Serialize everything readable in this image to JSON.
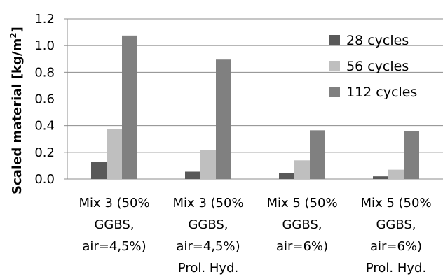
{
  "chart_data": {
    "type": "bar",
    "ylabel": "Scaled material [kg/m",
    "ylabel_sup": "2",
    "ylabel_end": "]",
    "ylim": [
      0,
      1.2
    ],
    "yticks": [
      "0.0",
      "0.2",
      "0.4",
      "0.6",
      "0.8",
      "1.0",
      "1.2"
    ],
    "ytick_values": [
      0,
      0.2,
      0.4,
      0.6,
      0.8,
      1.0,
      1.2
    ],
    "grid": true,
    "legend_position": "top-right",
    "categories": [
      [
        "Mix 3 (50%",
        "GGBS,",
        "air=4,5%)"
      ],
      [
        "Mix 3 (50%",
        "GGBS,",
        "air=4,5%)",
        "Prol. Hyd."
      ],
      [
        "Mix 5 (50%",
        "GGBS,",
        "air=6%)"
      ],
      [
        "Mix 5 (50%",
        "GGBS,",
        "air=6%)",
        "Prol. Hyd."
      ]
    ],
    "series": [
      {
        "name": "28 cycles",
        "color": "#595959",
        "values": [
          0.13,
          0.055,
          0.045,
          0.02
        ]
      },
      {
        "name": "56 cycles",
        "color": "#bfbfbf",
        "values": [
          0.375,
          0.215,
          0.14,
          0.07
        ]
      },
      {
        "name": "112 cycles",
        "color": "#808080",
        "values": [
          1.075,
          0.895,
          0.365,
          0.36
        ]
      }
    ]
  }
}
